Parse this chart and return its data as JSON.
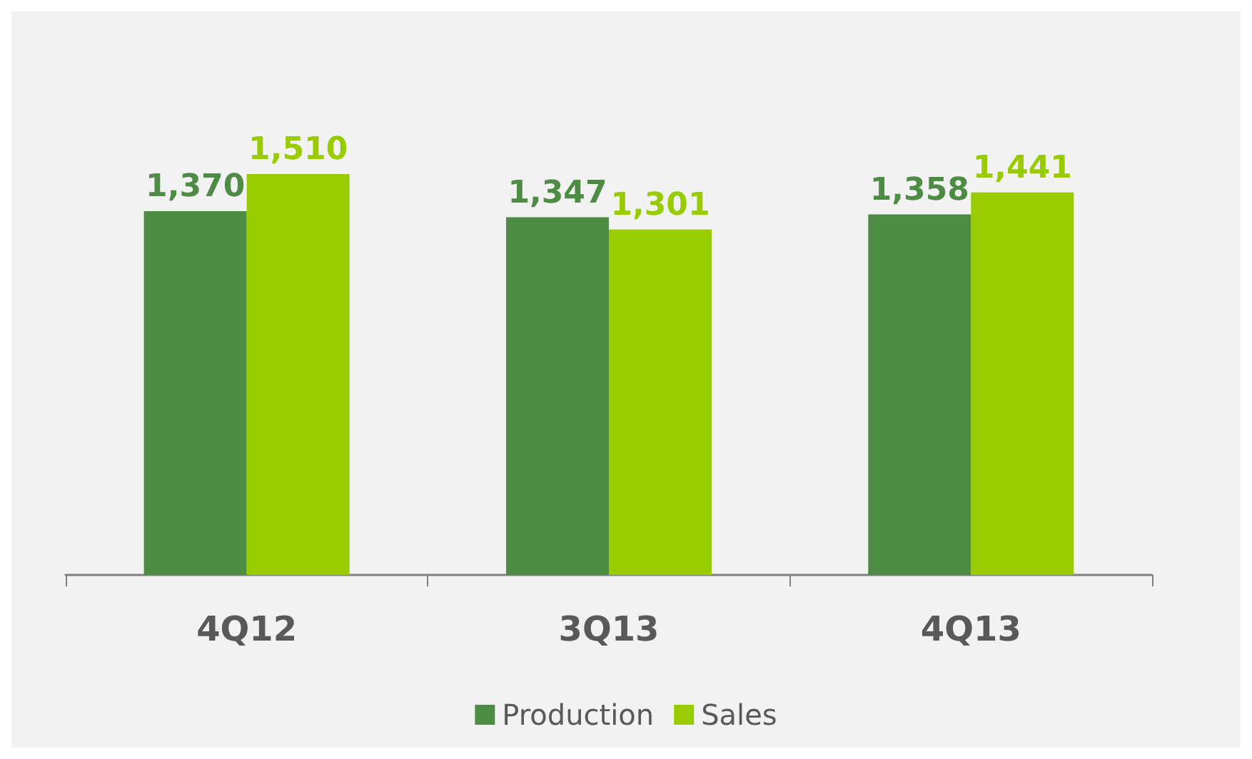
{
  "chart_data": {
    "type": "bar",
    "categories": [
      "4Q12",
      "3Q13",
      "4Q13"
    ],
    "series": [
      {
        "name": "Production",
        "color": "#4e8c46",
        "values": [
          1370,
          1347,
          1358
        ],
        "value_labels": [
          "1,370",
          "1,347",
          "1,358"
        ]
      },
      {
        "name": "Sales",
        "color": "#99cc00",
        "values": [
          1510,
          1301,
          1441
        ],
        "value_labels": [
          "1,510",
          "1,301",
          "1,441"
        ]
      }
    ],
    "legend": "bottom",
    "tick_labels": "x"
  }
}
